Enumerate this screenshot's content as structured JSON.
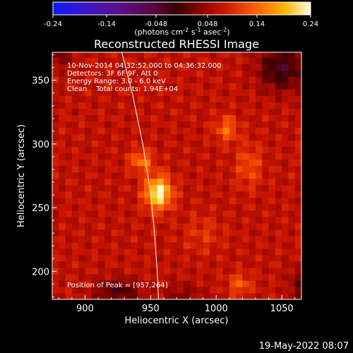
{
  "chart_data": {
    "type": "heatmap",
    "title": "Reconstructed RHESSI Image",
    "xlabel": "Heliocentric X (arcsec)",
    "ylabel": "Heliocentric Y (arcsec)",
    "xlim": [
      875,
      1065
    ],
    "ylim": [
      178,
      372
    ],
    "x_ticks": [
      900,
      950,
      1000,
      1050
    ],
    "y_ticks": [
      200,
      250,
      300,
      350
    ],
    "colorbar": {
      "min": -0.24,
      "max": 0.24,
      "ticks": [
        "-0.24",
        "-0.14",
        "-0.048",
        "0.048",
        "0.14",
        "0.24"
      ],
      "unit_text": "(photons cm",
      "unit_sup1": "-2",
      "unit_mid": " s",
      "unit_sup2": "-1",
      "unit_mid2": " asec",
      "unit_sup3": "-2",
      "unit_end": ")"
    },
    "annotations": [
      "10-Nov-2014 04:32:52.000 to 04:36:32.000",
      "Detectors: 3F 6F 9F, Att 0",
      "Energy Range: 3.0 - 6.0 keV",
      "Clean    Total counts: 1.94E+04"
    ],
    "peak_label": "Position of Peak = [957,264]",
    "peak": [
      957,
      264
    ],
    "background_value": 0.07,
    "sources": [
      {
        "x": 956,
        "y": 262,
        "sx": 7,
        "sy": 9,
        "amp": 0.17
      },
      {
        "x": 943,
        "y": 287,
        "sx": 6,
        "sy": 6,
        "amp": 0.08
      },
      {
        "x": 1008,
        "y": 312,
        "sx": 6,
        "sy": 7,
        "amp": 0.07
      },
      {
        "x": 1025,
        "y": 283,
        "sx": 7,
        "sy": 12,
        "amp": 0.05
      },
      {
        "x": 1018,
        "y": 190,
        "sx": 6,
        "sy": 6,
        "amp": 0.06
      },
      {
        "x": 990,
        "y": 230,
        "sx": 10,
        "sy": 10,
        "amp": 0.03
      }
    ],
    "dark_regions": [
      {
        "x": 1050,
        "y": 360,
        "sx": 12,
        "sy": 12,
        "amp": -0.1
      },
      {
        "x": 880,
        "y": 372,
        "sx": 8,
        "sy": 8,
        "amp": -0.05
      },
      {
        "x": 925,
        "y": 185,
        "sx": 12,
        "sy": 6,
        "amp": -0.08
      },
      {
        "x": 975,
        "y": 182,
        "sx": 10,
        "sy": 6,
        "amp": -0.04
      },
      {
        "x": 1063,
        "y": 190,
        "sx": 5,
        "sy": 10,
        "amp": -0.05
      }
    ],
    "limb_curve": [
      [
        928,
        372
      ],
      [
        936,
        340
      ],
      [
        944,
        300
      ],
      [
        950,
        262
      ],
      [
        953,
        230
      ],
      [
        955,
        200
      ],
      [
        956,
        178
      ]
    ],
    "grid": false
  },
  "footer": {
    "timestamp": "19-May-2022 08:07"
  },
  "colors": {
    "background": "#000000",
    "text": "#ffffff"
  }
}
